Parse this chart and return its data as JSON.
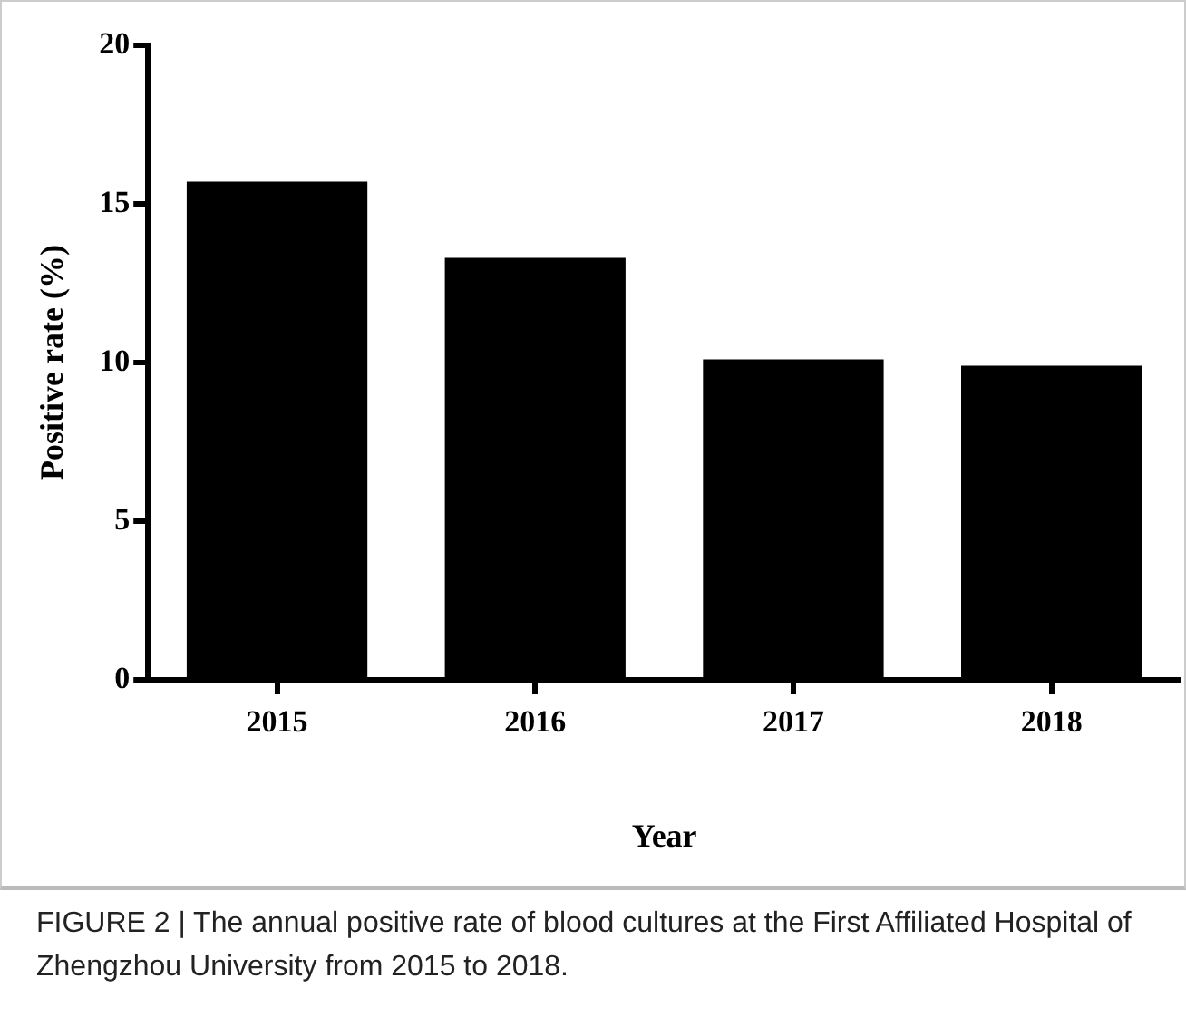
{
  "chart_data": {
    "type": "bar",
    "xlabel": "Year",
    "ylabel": "Positive rate (%)",
    "categories": [
      "2015",
      "2016",
      "2017",
      "2018"
    ],
    "values": [
      15.7,
      13.3,
      10.1,
      9.9
    ],
    "color": "#000000",
    "ylim": [
      0,
      20
    ],
    "yticks": [
      0,
      5,
      10,
      15,
      20
    ],
    "grid": false,
    "legend": false,
    "annotations": [
      "FIGURE 2 | The annual positive rate of blood cultures at the First Affiliated Hospital of Zhengzhou University from 2015 to 2018."
    ]
  }
}
